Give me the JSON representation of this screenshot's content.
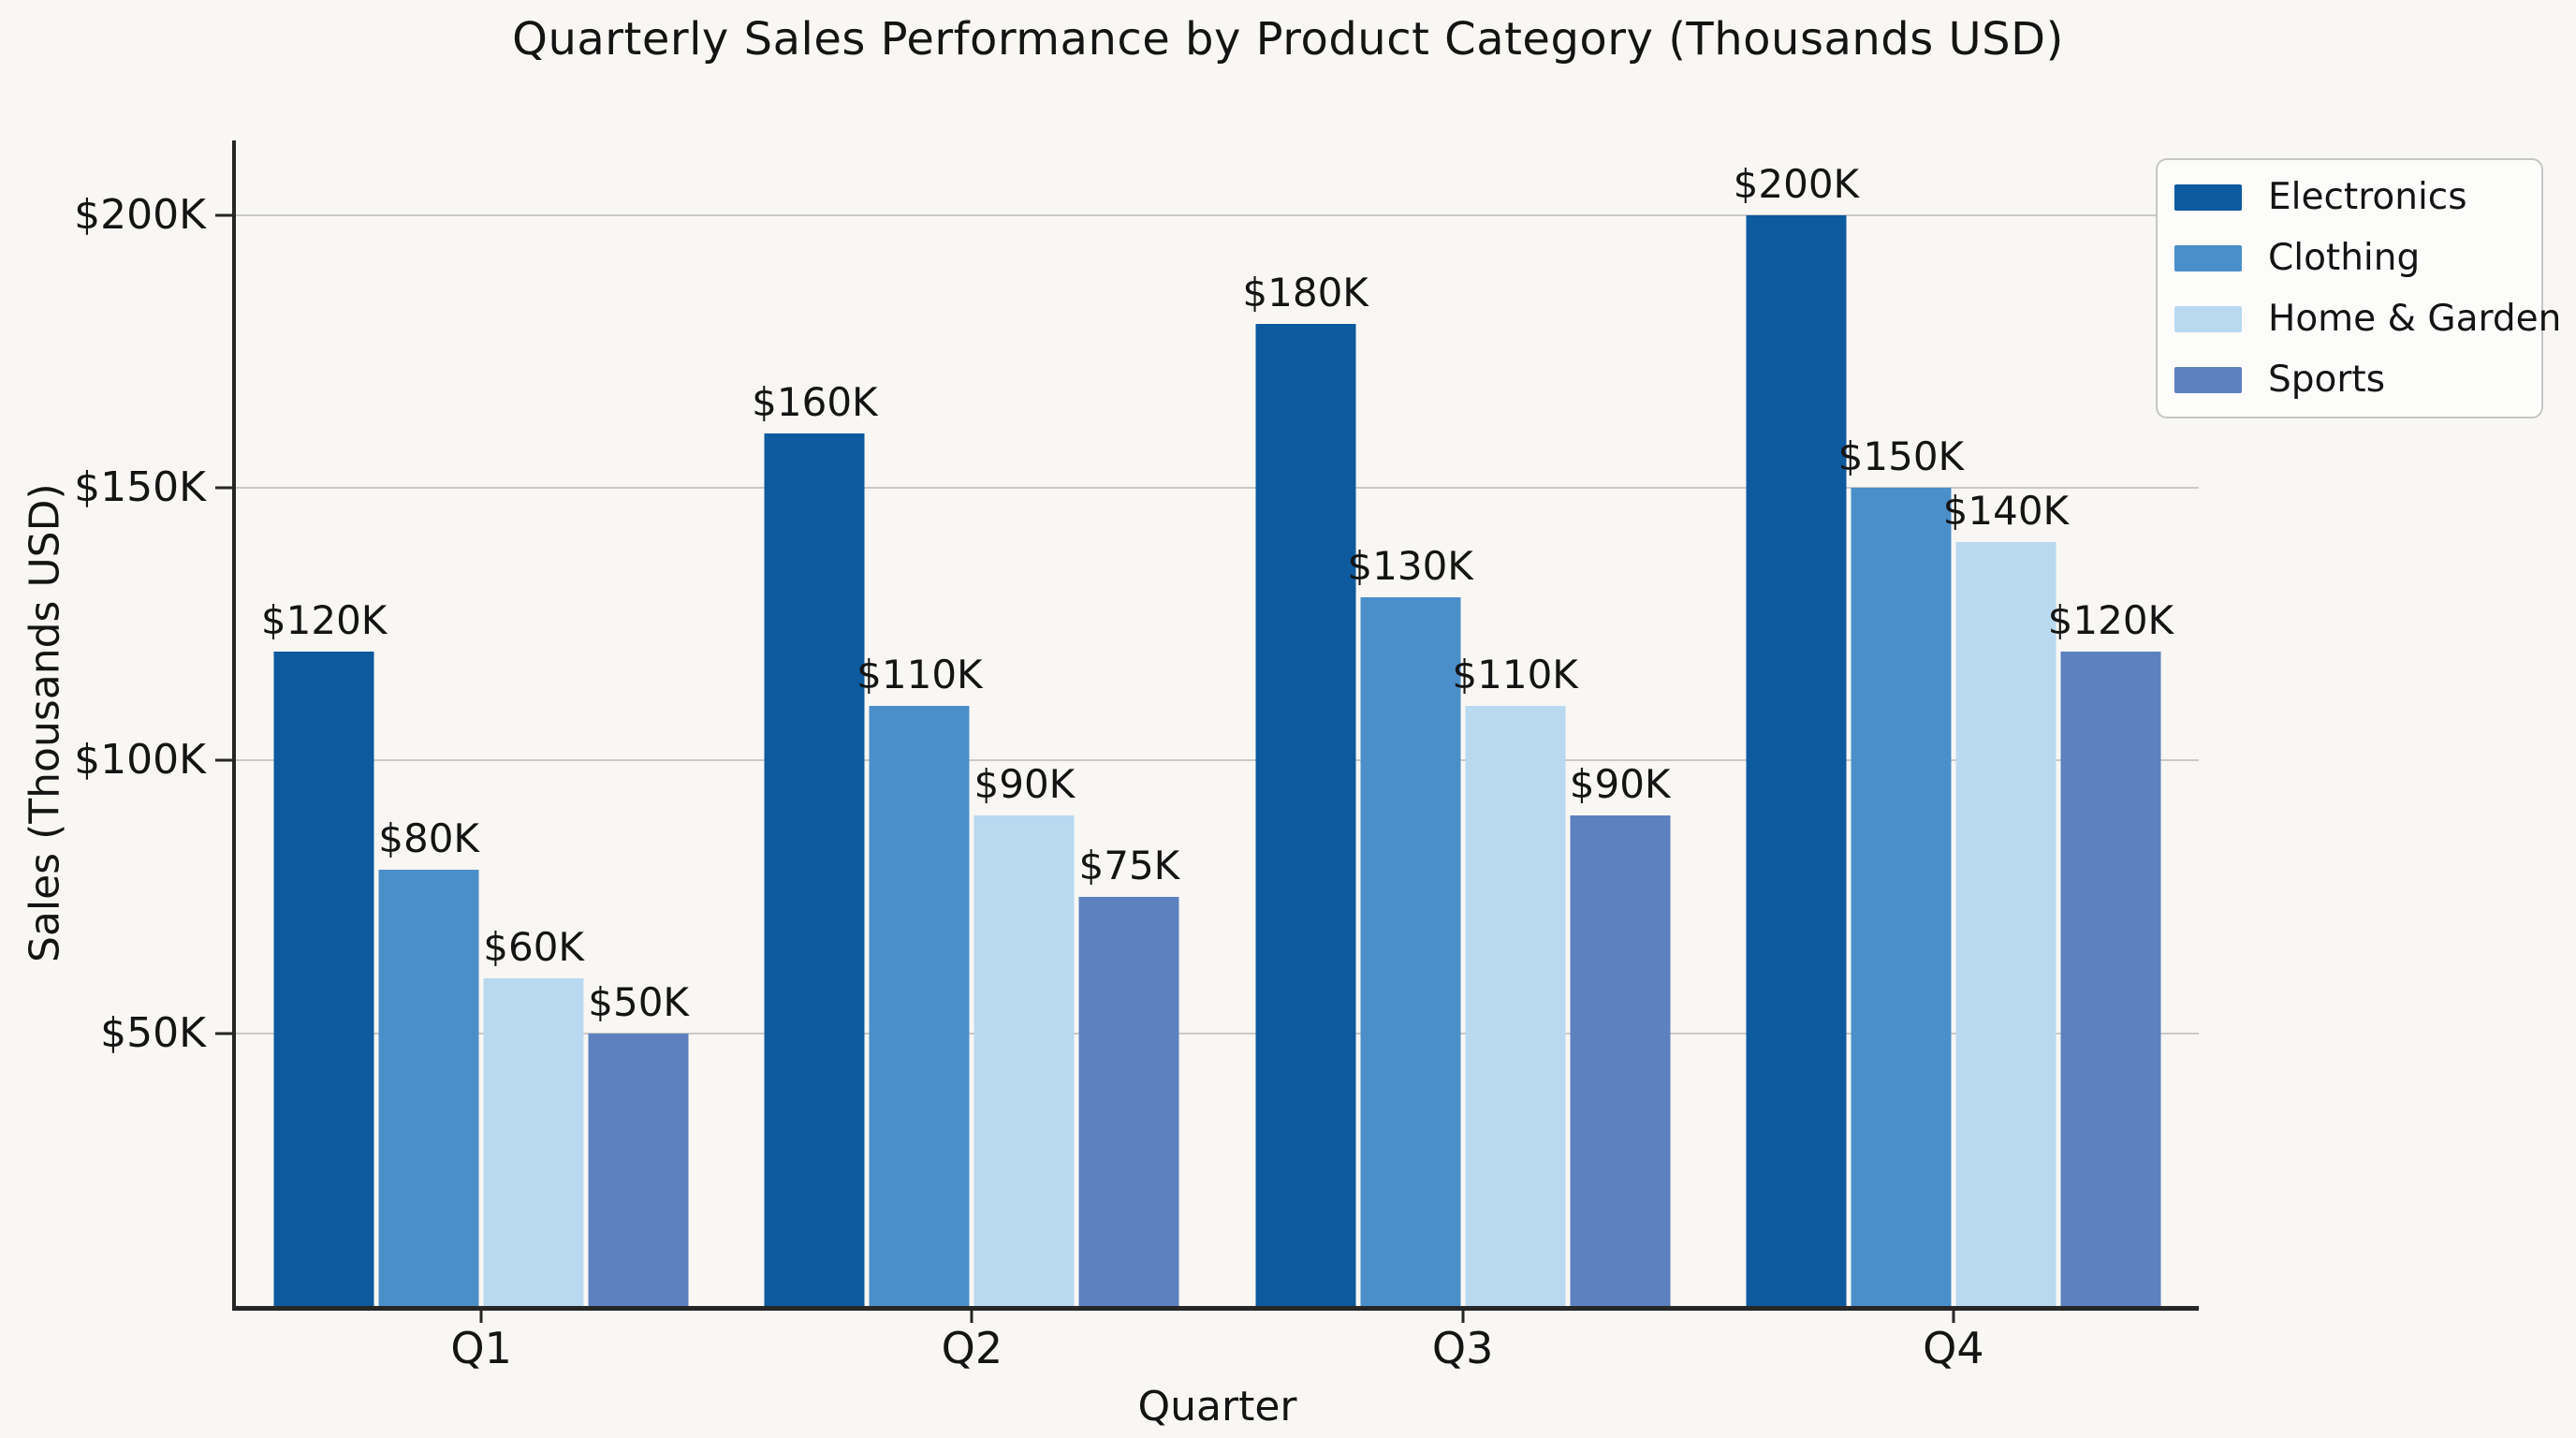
{
  "page": {
    "background": "#f8f7f4",
    "text_color": "#141414",
    "grid_color": "#c9c9c9",
    "spine_color": "#262626"
  },
  "chart_data": {
    "type": "bar",
    "title": "Quarterly Sales Performance by Product Category (Thousands USD)",
    "xlabel": "Quarter",
    "ylabel": "Sales (Thousands USD)",
    "categories": [
      "Q1",
      "Q2",
      "Q3",
      "Q4"
    ],
    "series": [
      {
        "name": "Electronics",
        "color": "#0d5a9e",
        "values": [
          120,
          160,
          180,
          200
        ],
        "value_labels": [
          "$120K",
          "$160K",
          "$180K",
          "$200K"
        ]
      },
      {
        "name": "Clothing",
        "color": "#4a8fc9",
        "values": [
          80,
          110,
          130,
          150
        ],
        "value_labels": [
          "$80K",
          "$110K",
          "$130K",
          "$150K"
        ]
      },
      {
        "name": "Home & Garden",
        "color": "#b9d9f0",
        "values": [
          60,
          90,
          110,
          140
        ],
        "value_labels": [
          "$60K",
          "$90K",
          "$110K",
          "$140K"
        ]
      },
      {
        "name": "Sports",
        "color": "#5d81be",
        "values": [
          50,
          75,
          90,
          120
        ],
        "value_labels": [
          "$50K",
          "$75K",
          "$90K",
          "$120K"
        ]
      }
    ],
    "y_axis": {
      "min": 0,
      "max": 213.7,
      "ticks": [
        {
          "value": 50,
          "label": "$50K"
        },
        {
          "value": 100,
          "label": "$100K"
        },
        {
          "value": 150,
          "label": "$150K"
        },
        {
          "value": 200,
          "label": "$200K"
        }
      ]
    },
    "grid": true,
    "legend_position": "upper right"
  }
}
